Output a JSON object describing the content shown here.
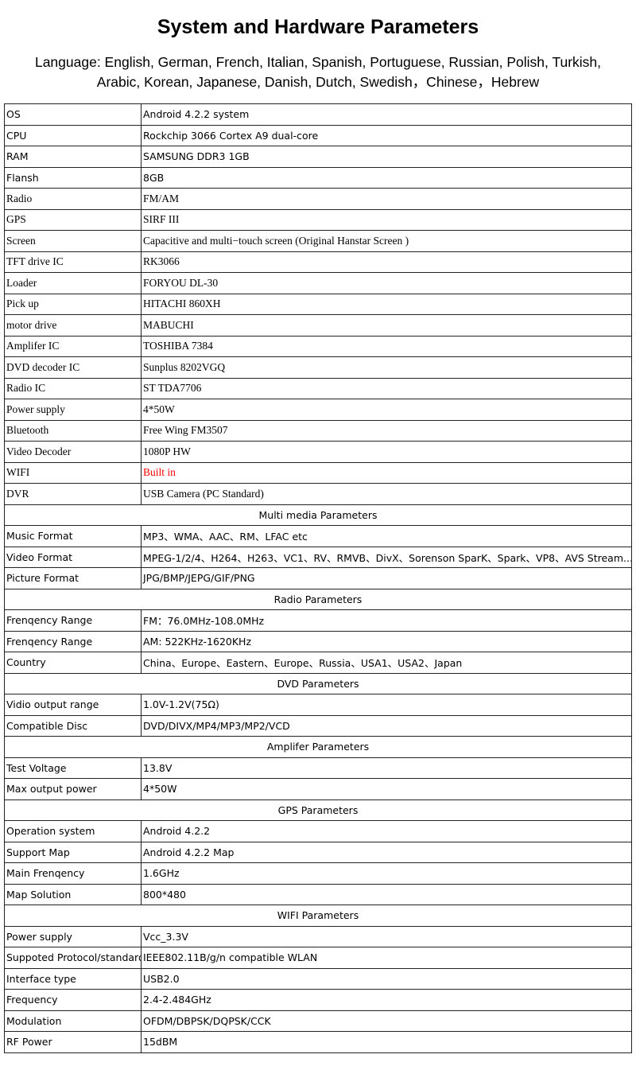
{
  "title": "System and Hardware Parameters",
  "language_line1": "Language: English, German, French, Italian, Spanish, Portuguese, Russian, Polish,  Turkish,",
  "language_line2": "Arabic, Korean, Japanese, Danish, Dutch, Swedish，Chinese，Hebrew",
  "highlight_color": "#ff0000",
  "rows": [
    {
      "k": "OS",
      "v": "Android 4.2.2 system"
    },
    {
      "k": "CPU",
      "v": "Rockchip 3066 Cortex A9 dual-core"
    },
    {
      "k": "RAM",
      "v": "SAMSUNG DDR3 1GB"
    },
    {
      "k": "Flansh",
      "v": "8GB"
    },
    {
      "k": "Radio",
      "v": "FM/AM"
    },
    {
      "k": "GPS",
      "v": "SIRF III"
    },
    {
      "k": "Screen",
      "v": "Capacitive and multi−touch screen (Original Hanstar Screen )"
    },
    {
      "k": "TFT drive IC",
      "v": "RK3066"
    },
    {
      "k": "Loader",
      "v": "FORYOU  DL-30"
    },
    {
      "k": "Pick up",
      "v": "HITACHI  860XH"
    },
    {
      "k": "motor drive",
      "v": "MABUCHI"
    },
    {
      "k": "Amplifer IC",
      "v": "TOSHIBA 7384"
    },
    {
      "k": "DVD decoder IC",
      "v": "Sunplus   8202VGQ"
    },
    {
      "k": "Radio IC",
      "v": "ST   TDA7706"
    },
    {
      "k": "Power supply",
      "v": "4*50W"
    },
    {
      "k": "Bluetooth",
      "v": "Free Wing     FM3507"
    },
    {
      "k": "Video Decoder",
      "v": "1080P HW"
    },
    {
      "k": "WIFI",
      "v": "Built in",
      "red": true
    },
    {
      "k": "DVR",
      "v": "USB Camera (PC Standard)"
    },
    {
      "section": "Multi media Parameters"
    },
    {
      "k": "Music Format",
      "v": "MP3、WMA、AAC、RM、LFAC etc"
    },
    {
      "k": "Video Format",
      "v": "MPEG-1/2/4、H264、H263、VC1、RV、RMVB、DivX、Sorenson SparK、Spark、VP8、AVS Stream..."
    },
    {
      "k": "Picture Format",
      "v": "JPG/BMP/JEPG/GIF/PNG"
    },
    {
      "section": "Radio Parameters"
    },
    {
      "k": "Frenqency Range",
      "v": "FM：76.0MHz-108.0MHz"
    },
    {
      "k": "Frenqency Range",
      "v": "AM: 522KHz-1620KHz"
    },
    {
      "k": "Country",
      "v": "China、Europe、Eastern、Europe、Russia、USA1、USA2、Japan"
    },
    {
      "section": "DVD Parameters"
    },
    {
      "k": "Vidio output range",
      "v": "1.0V-1.2V(75Ω)"
    },
    {
      "k": "Compatible Disc",
      "v": "DVD/DIVX/MP4/MP3/MP2/VCD"
    },
    {
      "section": "Amplifer Parameters"
    },
    {
      "k": "Test Voltage",
      "v": "13.8V"
    },
    {
      "k": "Max output power",
      "v": "4*50W"
    },
    {
      "section": "GPS Parameters"
    },
    {
      "k": "Operation system",
      "v": "Android 4.2.2"
    },
    {
      "k": "Support Map",
      "v": "Android 4.2.2 Map"
    },
    {
      "k": "Main Frenqency",
      "v": "1.6GHz"
    },
    {
      "k": "Map Solution",
      "v": "800*480"
    },
    {
      "section": "WIFI Parameters"
    },
    {
      "k": "Power supply",
      "v": "Vcc_3.3V"
    },
    {
      "k": "Suppoted Protocol/standard",
      "v": "IEEE802.11B/g/n compatible WLAN"
    },
    {
      "k": "Interface  type",
      "v": "USB2.0"
    },
    {
      "k": "Frequency",
      "v": "2.4-2.484GHz"
    },
    {
      "k": "Modulation",
      "v": "OFDM/DBPSK/DQPSK/CCK"
    },
    {
      "k": "RF Power",
      "v": "15dBM"
    }
  ]
}
